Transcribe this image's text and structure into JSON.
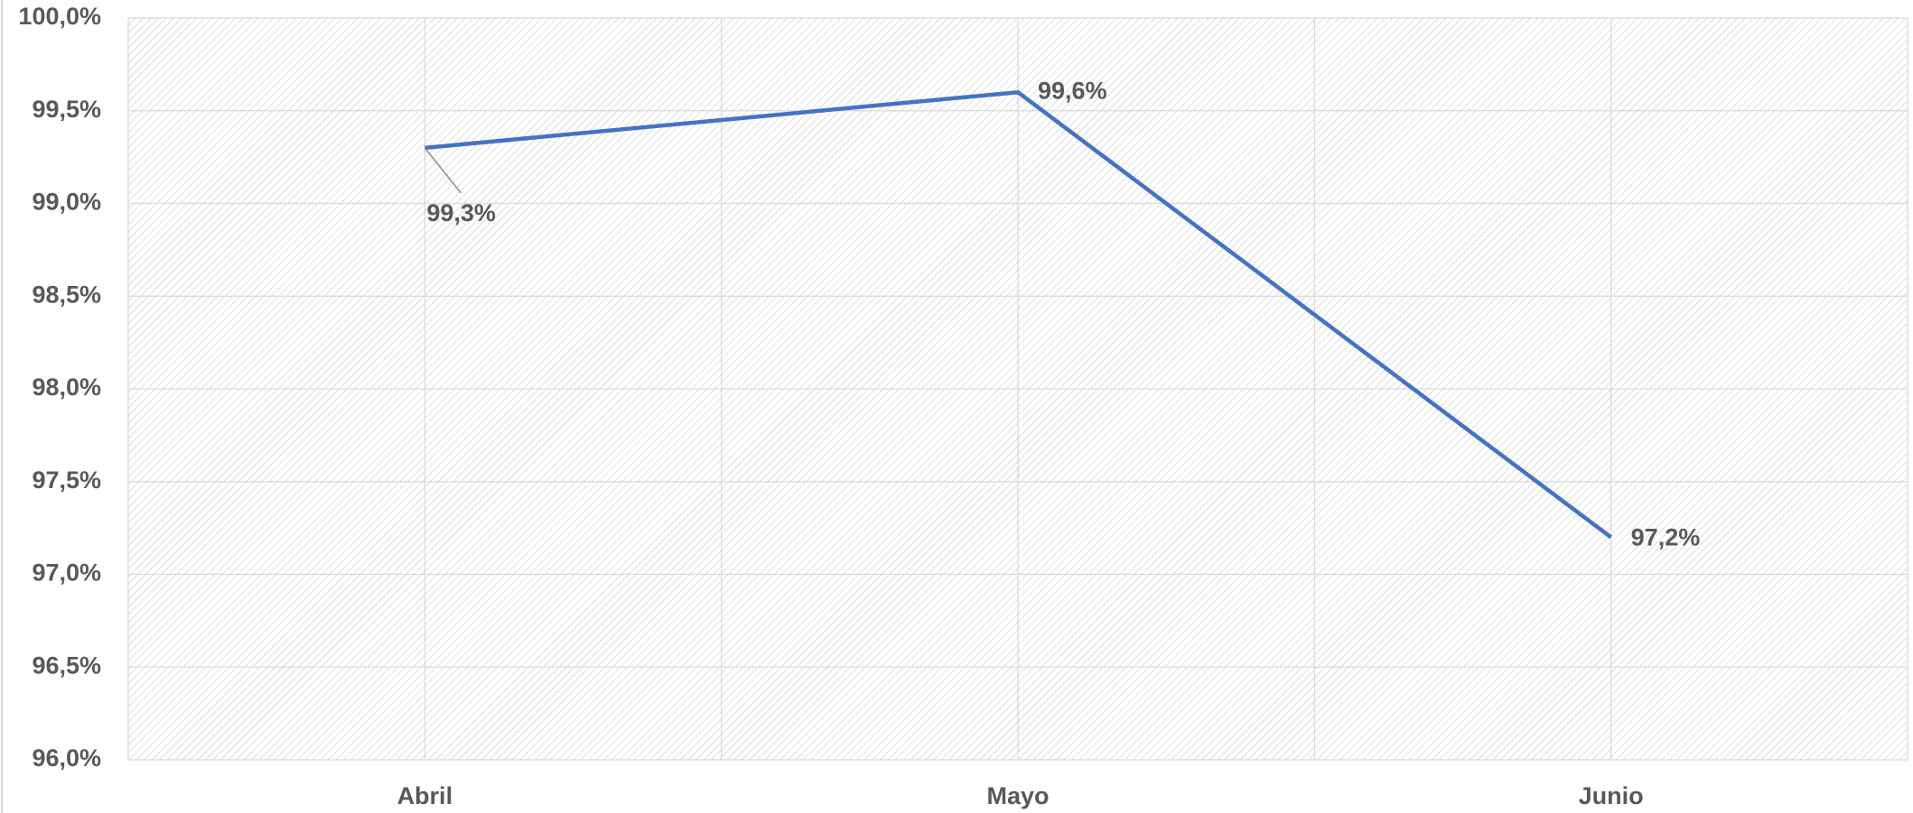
{
  "chart_data": {
    "type": "line",
    "categories": [
      "Abril",
      "Mayo",
      "Junio"
    ],
    "values": [
      99.3,
      99.6,
      97.2
    ],
    "value_labels": [
      "99,3%",
      "99,6%",
      "97,2%"
    ],
    "color": "#4472c4",
    "ylim": [
      96,
      100
    ],
    "yticks": [
      {
        "value": 96,
        "label": "96,0%"
      },
      {
        "value": 96.5,
        "label": "96,5%"
      },
      {
        "value": 97,
        "label": "97,0%"
      },
      {
        "value": 97.5,
        "label": "97,5%"
      },
      {
        "value": 98,
        "label": "98,0%"
      },
      {
        "value": 98.5,
        "label": "98,5%"
      },
      {
        "value": 99,
        "label": "99,0%"
      },
      {
        "value": 99.5,
        "label": "99,5%"
      },
      {
        "value": 100,
        "label": "100,0%"
      }
    ],
    "grid": true
  }
}
